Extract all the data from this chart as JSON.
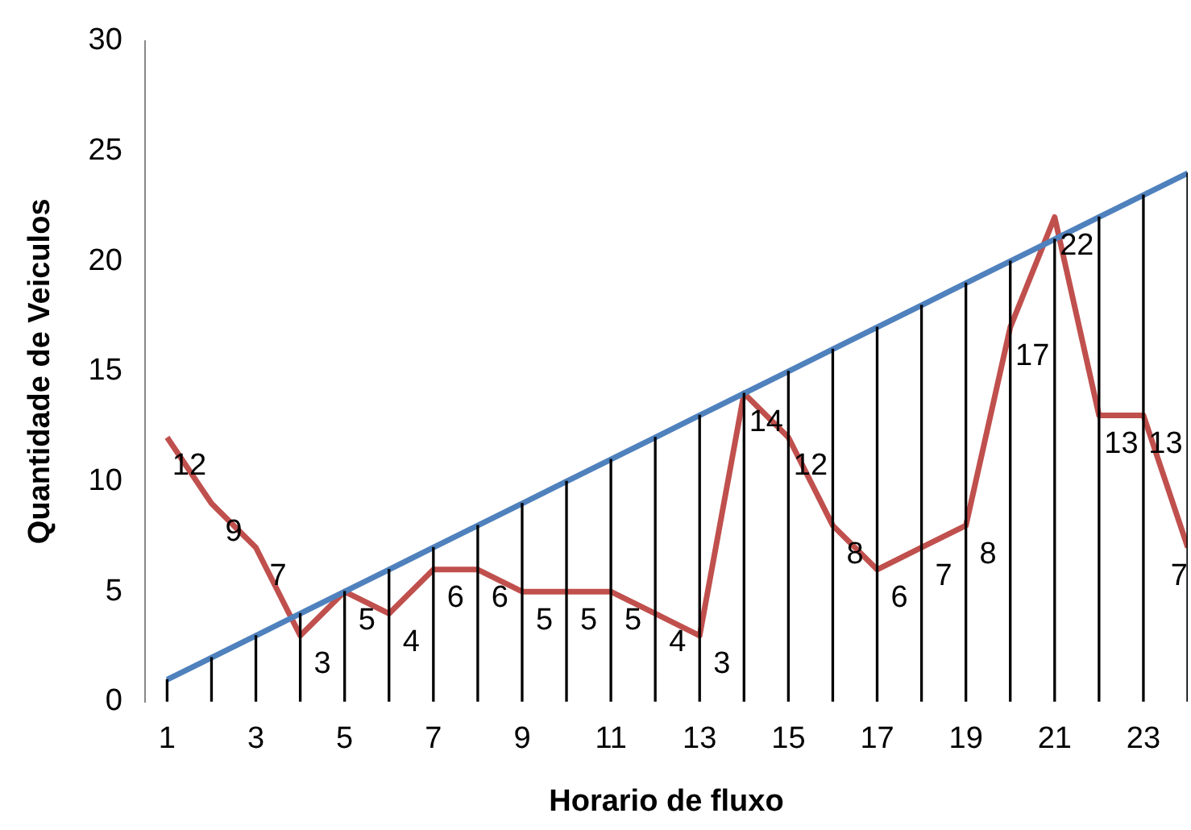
{
  "chart_data": {
    "type": "line",
    "xlabel": "Horario de fluxo",
    "ylabel": "Quantidade de Veiculos",
    "x": [
      1,
      2,
      3,
      4,
      5,
      6,
      7,
      8,
      9,
      10,
      11,
      12,
      13,
      14,
      15,
      16,
      17,
      18,
      19,
      20,
      21,
      22,
      23,
      24
    ],
    "xlim": [
      0.5,
      24
    ],
    "xticks": [
      1,
      3,
      5,
      7,
      9,
      11,
      13,
      15,
      17,
      19,
      21,
      23
    ],
    "series": [
      {
        "color": "#4f81bd",
        "values": [
          1,
          2,
          3,
          4,
          5,
          6,
          7,
          8,
          9,
          10,
          11,
          12,
          13,
          14,
          15,
          16,
          17,
          18,
          19,
          20,
          21,
          22,
          23,
          24
        ]
      },
      {
        "type": "bar",
        "color": "#000000",
        "values": [
          1,
          2,
          3,
          4,
          5,
          6,
          7,
          8,
          9,
          10,
          11,
          12,
          13,
          14,
          15,
          16,
          17,
          18,
          19,
          20,
          21,
          22,
          23,
          24
        ]
      },
      {
        "color": "#c0504d",
        "values": [
          12,
          9,
          7,
          3,
          5,
          4,
          6,
          6,
          5,
          5,
          5,
          4,
          3,
          14,
          12,
          8,
          6,
          7,
          8,
          17,
          22,
          13,
          13,
          7
        ],
        "value_labels": [
          "12",
          "9",
          "7",
          "3",
          "5",
          "4",
          "6",
          "6",
          "5",
          "5",
          "5",
          "4",
          "3",
          "14",
          "12",
          "8",
          "6",
          "7",
          "8",
          "17",
          "22",
          "13",
          "13",
          "7"
        ]
      }
    ],
    "ylim": [
      0,
      30
    ],
    "yticks": [
      0,
      5,
      10,
      15,
      20,
      25,
      30
    ],
    "grid": false,
    "legend": false,
    "marker": "none",
    "line_style": "solid"
  }
}
